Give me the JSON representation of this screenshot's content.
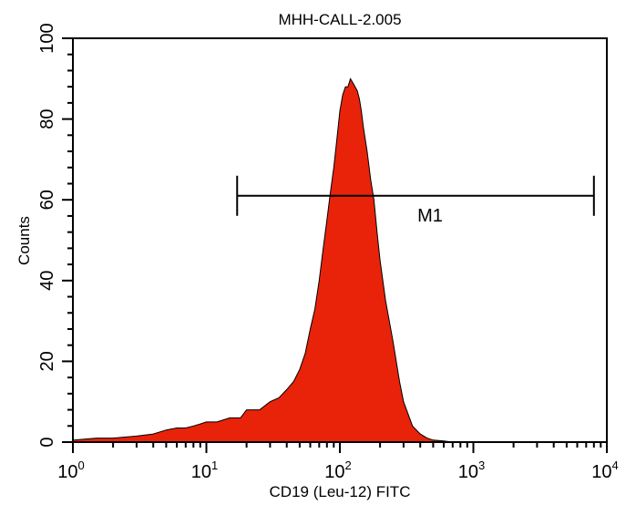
{
  "chart_data": {
    "type": "area",
    "title": "MHH-CALL-2.005",
    "xlabel": "CD19 (Leu-12) FITC",
    "ylabel": "Counts",
    "x_scale": "log",
    "xlim": [
      1,
      10000
    ],
    "ylim": [
      0,
      100
    ],
    "x_ticks": [
      {
        "base": "10",
        "exp": "0"
      },
      {
        "base": "10",
        "exp": "1"
      },
      {
        "base": "10",
        "exp": "2"
      },
      {
        "base": "10",
        "exp": "3"
      },
      {
        "base": "10",
        "exp": "4"
      }
    ],
    "y_ticks": [
      "0",
      "20",
      "40",
      "60",
      "80",
      "100"
    ],
    "grid": false,
    "fill_color": "#e8230a",
    "series": [
      {
        "x": [
          1,
          1.5,
          2,
          3,
          4,
          5,
          6,
          7,
          8,
          9,
          10,
          12,
          15,
          18,
          20,
          25,
          30,
          35,
          40,
          45,
          50,
          55,
          60,
          65,
          70,
          75,
          80,
          85,
          90,
          95,
          100,
          105,
          110,
          115,
          120,
          125,
          130,
          135,
          140,
          145,
          150,
          160,
          170,
          180,
          190,
          200,
          220,
          250,
          280,
          300,
          350,
          400,
          450,
          500,
          600,
          700,
          1000,
          10000
        ],
        "y": [
          0.5,
          1,
          1,
          1.5,
          2,
          3,
          3.5,
          3.5,
          4,
          4.5,
          5,
          5,
          6,
          6,
          8,
          8,
          10,
          11,
          13,
          15,
          18,
          22,
          28,
          33,
          40,
          48,
          55,
          62,
          68,
          75,
          82,
          86,
          88,
          88,
          90,
          89,
          88,
          87,
          85,
          82,
          78,
          72,
          65,
          60,
          52,
          45,
          35,
          25,
          15,
          10,
          4,
          2,
          1,
          0.5,
          0.3,
          0,
          0,
          0
        ]
      }
    ],
    "marker": {
      "label": "M1",
      "x_start": 17,
      "x_end": 8000,
      "y": 61
    }
  }
}
